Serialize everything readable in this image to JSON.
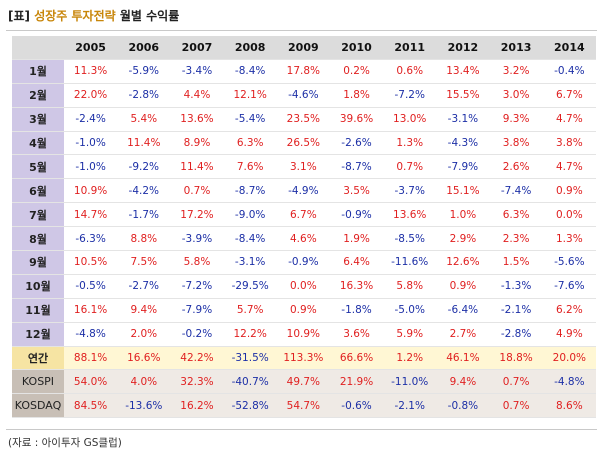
{
  "title": {
    "bracket": "[표]",
    "highlight": "성장주 투자전략",
    "rest": "월별 수익률"
  },
  "years": [
    "2005",
    "2006",
    "2007",
    "2008",
    "2009",
    "2010",
    "2011",
    "2012",
    "2013",
    "2014"
  ],
  "rows": [
    {
      "label": "1월",
      "type": "month",
      "values": [
        "11.3%",
        "-5.9%",
        "-3.4%",
        "-8.4%",
        "17.8%",
        "0.2%",
        "0.6%",
        "13.4%",
        "3.2%",
        "-0.4%"
      ]
    },
    {
      "label": "2월",
      "type": "month",
      "values": [
        "22.0%",
        "-2.8%",
        "4.4%",
        "12.1%",
        "-4.6%",
        "1.8%",
        "-7.2%",
        "15.5%",
        "3.0%",
        "6.7%"
      ]
    },
    {
      "label": "3월",
      "type": "month",
      "values": [
        "-2.4%",
        "5.4%",
        "13.6%",
        "-5.4%",
        "23.5%",
        "39.6%",
        "13.0%",
        "-3.1%",
        "9.3%",
        "4.7%"
      ]
    },
    {
      "label": "4월",
      "type": "month",
      "values": [
        "-1.0%",
        "11.4%",
        "8.9%",
        "6.3%",
        "26.5%",
        "-2.6%",
        "1.3%",
        "-4.3%",
        "3.8%",
        "3.8%"
      ]
    },
    {
      "label": "5월",
      "type": "month",
      "values": [
        "-1.0%",
        "-9.2%",
        "11.4%",
        "7.6%",
        "3.1%",
        "-8.7%",
        "0.7%",
        "-7.9%",
        "2.6%",
        "4.7%"
      ]
    },
    {
      "label": "6월",
      "type": "month",
      "values": [
        "10.9%",
        "-4.2%",
        "0.7%",
        "-8.7%",
        "-4.9%",
        "3.5%",
        "-3.7%",
        "15.1%",
        "-7.4%",
        "0.9%"
      ]
    },
    {
      "label": "7월",
      "type": "month",
      "values": [
        "14.7%",
        "-1.7%",
        "17.2%",
        "-9.0%",
        "6.7%",
        "-0.9%",
        "13.6%",
        "1.0%",
        "6.3%",
        "0.0%"
      ]
    },
    {
      "label": "8월",
      "type": "month",
      "values": [
        "-6.3%",
        "8.8%",
        "-3.9%",
        "-8.4%",
        "4.6%",
        "1.9%",
        "-8.5%",
        "2.9%",
        "2.3%",
        "1.3%"
      ]
    },
    {
      "label": "9월",
      "type": "month",
      "values": [
        "10.5%",
        "7.5%",
        "5.8%",
        "-3.1%",
        "-0.9%",
        "6.4%",
        "-11.6%",
        "12.6%",
        "1.5%",
        "-5.6%"
      ]
    },
    {
      "label": "10월",
      "type": "month",
      "values": [
        "-0.5%",
        "-2.7%",
        "-7.2%",
        "-29.5%",
        "0.0%",
        "16.3%",
        "5.8%",
        "0.9%",
        "-1.3%",
        "-7.6%"
      ]
    },
    {
      "label": "11월",
      "type": "month",
      "values": [
        "16.1%",
        "9.4%",
        "-7.9%",
        "5.7%",
        "0.9%",
        "-1.8%",
        "-5.0%",
        "-6.4%",
        "-2.1%",
        "6.2%"
      ]
    },
    {
      "label": "12월",
      "type": "month",
      "values": [
        "-4.8%",
        "2.0%",
        "-0.2%",
        "12.2%",
        "10.9%",
        "3.6%",
        "5.9%",
        "2.7%",
        "-2.8%",
        "4.9%"
      ]
    },
    {
      "label": "연간",
      "type": "annual",
      "values": [
        "88.1%",
        "16.6%",
        "42.2%",
        "-31.5%",
        "113.3%",
        "66.6%",
        "1.2%",
        "46.1%",
        "18.8%",
        "20.0%"
      ]
    },
    {
      "label": "KOSPI",
      "type": "index",
      "values": [
        "54.0%",
        "4.0%",
        "32.3%",
        "-40.7%",
        "49.7%",
        "21.9%",
        "-11.0%",
        "9.4%",
        "0.7%",
        "-4.8%"
      ]
    },
    {
      "label": "KOSDAQ",
      "type": "index",
      "values": [
        "84.5%",
        "-13.6%",
        "16.2%",
        "-52.8%",
        "54.7%",
        "-0.6%",
        "-2.1%",
        "-0.8%",
        "0.7%",
        "8.6%"
      ]
    }
  ],
  "colors": {
    "positive": "#e02020",
    "negative": "#1c2fa6",
    "month_label_bg": "#cfc7e6",
    "annual_bg": "#fff7d4",
    "index_bg": "#efeae5",
    "header_bg": "#dcdcdc"
  },
  "source": "(자료 : 아이투자 GS클럽)"
}
